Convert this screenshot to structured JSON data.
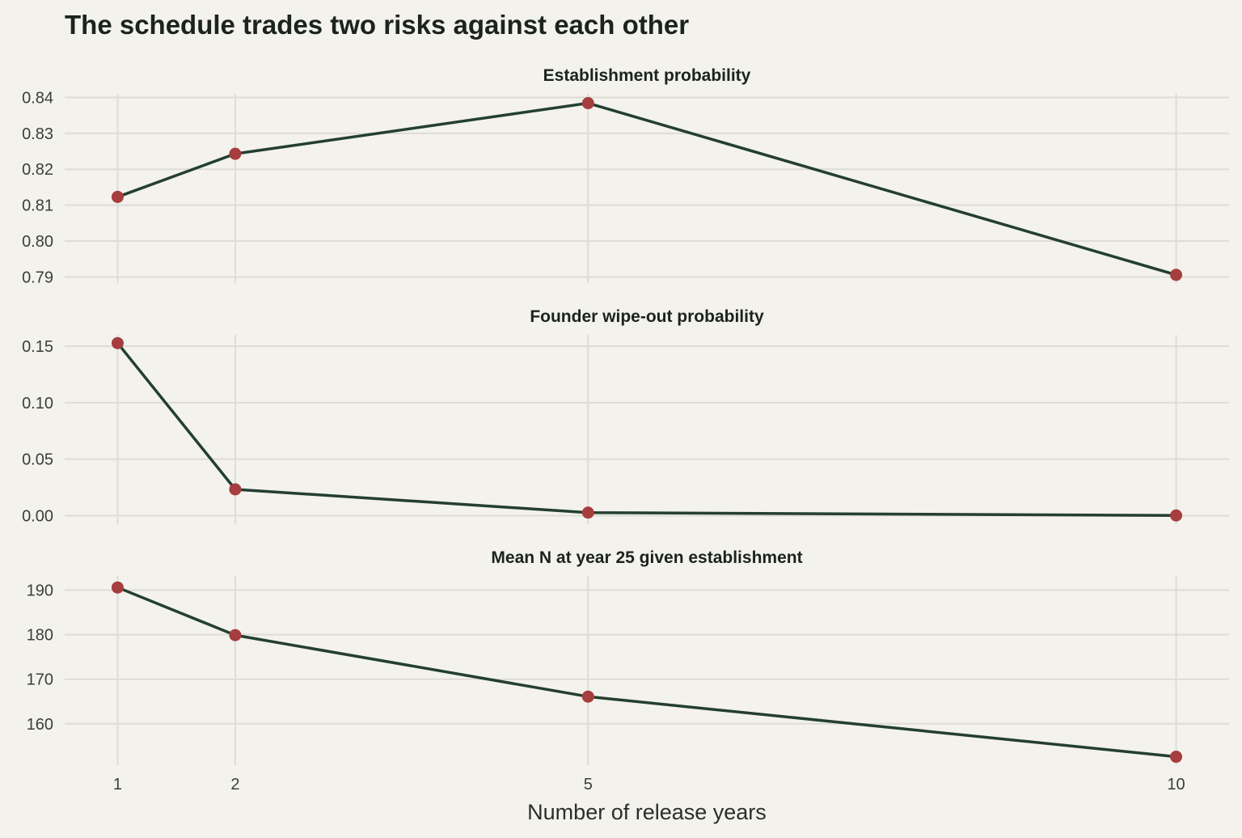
{
  "chart_data": {
    "type": "line",
    "title": "The schedule trades two risks against each other",
    "xlabel": "Number of release years",
    "x": [
      1,
      2,
      5,
      10
    ],
    "x_ticks": [
      "1",
      "2",
      "5",
      "10"
    ],
    "xlim": [
      0.55,
      10.45
    ],
    "grid": true,
    "line_color": "#233f2f",
    "point_color": "#a63d3f",
    "background": "#f3f2ec",
    "panels": [
      {
        "title": "Establishment probability",
        "values": [
          0.8123,
          0.8243,
          0.8384,
          0.7906
        ],
        "ylim": [
          0.7883,
          0.841
        ],
        "y_ticks": [
          0.79,
          0.8,
          0.81,
          0.82,
          0.83,
          0.84
        ],
        "y_tick_labels": [
          "0.79",
          "0.80",
          "0.81",
          "0.82",
          "0.83",
          "0.84"
        ]
      },
      {
        "title": "Founder wipe-out probability",
        "values": [
          0.1527,
          0.0233,
          0.0027,
          0.0002
        ],
        "ylim": [
          -0.0075,
          0.16
        ],
        "y_ticks": [
          0.0,
          0.05,
          0.1,
          0.15
        ],
        "y_tick_labels": [
          "0.00",
          "0.05",
          "0.10",
          "0.15"
        ]
      },
      {
        "title": "Mean N at year 25 given establishment",
        "values": [
          190.6,
          179.9,
          166.1,
          152.6
        ],
        "ylim": [
          150.7,
          193.2
        ],
        "y_ticks": [
          160,
          170,
          180,
          190
        ],
        "y_tick_labels": [
          "160",
          "170",
          "180",
          "190"
        ]
      }
    ]
  }
}
